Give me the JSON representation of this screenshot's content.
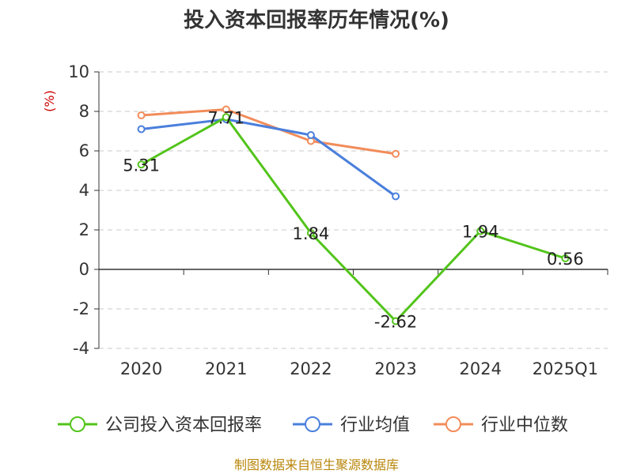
{
  "chart_data": {
    "type": "line",
    "title": "投入资本回报率历年情况(%)",
    "ylabel": "(%)",
    "categories": [
      "2020",
      "2021",
      "2022",
      "2023",
      "2024",
      "2025Q1"
    ],
    "ylim": [
      -4,
      10
    ],
    "yticks": [
      "10",
      "8",
      "6",
      "4",
      "2",
      "0",
      "-2",
      "-4"
    ],
    "grid": true,
    "legend_position": "bottom",
    "series": [
      {
        "name": "公司投入资本回报率",
        "color": "#52c41a",
        "values": [
          5.31,
          7.71,
          1.84,
          -2.62,
          1.94,
          0.56
        ],
        "labels": [
          "5.31",
          "7.71",
          "1.84",
          "-2.62",
          "1.94",
          "0.56"
        ]
      },
      {
        "name": "行业均值",
        "color": "#4a7fdc",
        "values": [
          7.1,
          7.6,
          6.8,
          3.7,
          null,
          null
        ]
      },
      {
        "name": "行业中位数",
        "color": "#f28c5a",
        "values": [
          7.8,
          8.1,
          6.5,
          5.85,
          null,
          null
        ]
      }
    ]
  },
  "source": "制图数据来自恒生聚源数据库"
}
